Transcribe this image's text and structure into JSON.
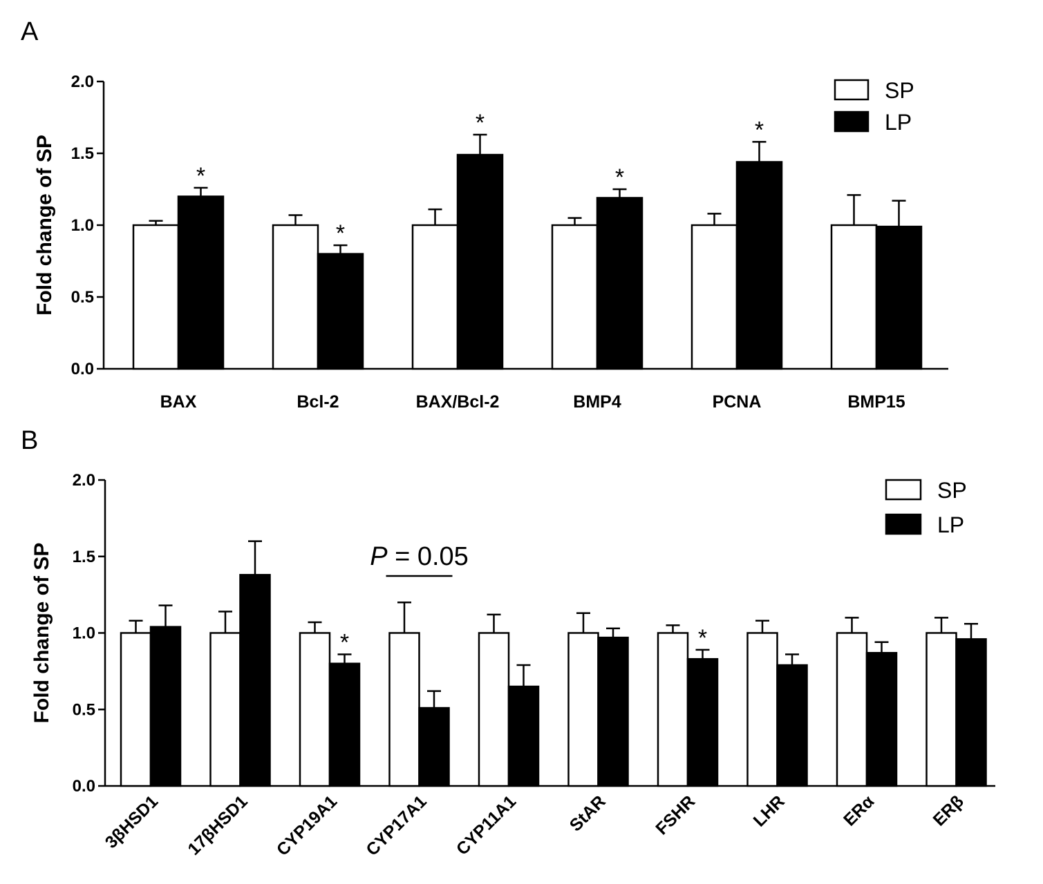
{
  "chart_data": [
    {
      "type": "bar",
      "panel_label": "A",
      "ylabel": "Fold change of SP",
      "ylim": [
        0,
        2.0
      ],
      "yticks": [
        "0.0",
        "0.5",
        "1.0",
        "1.5",
        "2.0"
      ],
      "categories": [
        "BAX",
        "Bcl-2",
        "BAX/Bcl-2",
        "BMP4",
        "PCNA",
        "BMP15"
      ],
      "series": [
        {
          "name": "SP",
          "color": "#ffffff",
          "values": [
            1.0,
            1.0,
            1.0,
            1.0,
            1.0,
            1.0
          ],
          "errors": [
            0.03,
            0.07,
            0.11,
            0.05,
            0.08,
            0.21
          ]
        },
        {
          "name": "LP",
          "color": "#000000",
          "values": [
            1.2,
            0.8,
            1.49,
            1.19,
            1.44,
            0.99
          ],
          "errors": [
            0.06,
            0.06,
            0.14,
            0.06,
            0.14,
            0.18
          ]
        }
      ],
      "significance": [
        "*",
        "*",
        "*",
        "*",
        "*",
        ""
      ],
      "legend": {
        "position": "top-right",
        "entries": [
          "SP",
          "LP"
        ]
      }
    },
    {
      "type": "bar",
      "panel_label": "B",
      "ylabel": "Fold change of SP",
      "ylim": [
        0,
        2.0
      ],
      "yticks": [
        "0.0",
        "0.5",
        "1.0",
        "1.5",
        "2.0"
      ],
      "categories": [
        "3βHSD1",
        "17βHSD1",
        "CYP19A1",
        "CYP17A1",
        "CYP11A1",
        "StAR",
        "FSHR",
        "LHR",
        "ERα",
        "ERβ"
      ],
      "series": [
        {
          "name": "SP",
          "color": "#ffffff",
          "values": [
            1.0,
            1.0,
            1.0,
            1.0,
            1.0,
            1.0,
            1.0,
            1.0,
            1.0,
            1.0
          ],
          "errors": [
            0.08,
            0.14,
            0.07,
            0.2,
            0.12,
            0.13,
            0.05,
            0.08,
            0.1,
            0.1
          ]
        },
        {
          "name": "LP",
          "color": "#000000",
          "values": [
            1.04,
            1.38,
            0.8,
            0.51,
            0.65,
            0.97,
            0.83,
            0.79,
            0.87,
            0.96
          ],
          "errors": [
            0.14,
            0.22,
            0.06,
            0.11,
            0.14,
            0.06,
            0.06,
            0.07,
            0.07,
            0.1
          ]
        }
      ],
      "significance": [
        "",
        "",
        "*",
        "",
        "",
        "",
        "*",
        "",
        "",
        ""
      ],
      "annotation": {
        "italic": "P",
        "text": " = 0.05",
        "category_index": 3
      },
      "legend": {
        "position": "top-right",
        "entries": [
          "SP",
          "LP"
        ]
      }
    }
  ]
}
